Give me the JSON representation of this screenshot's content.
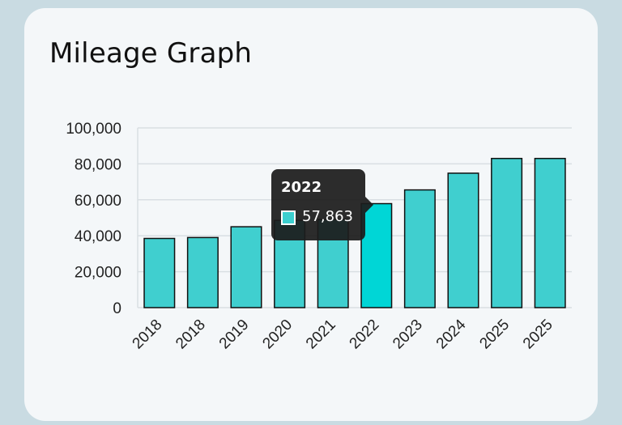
{
  "card": {
    "title": "Mileage Graph"
  },
  "colors": {
    "bar": "#40cfcf",
    "bar_active": "#00d6d6",
    "bar_border": "#111111",
    "grid": "#d9dfe3",
    "axis_text": "#222222",
    "tooltip_bg": "#1c1c1c"
  },
  "chart_data": {
    "type": "bar",
    "title": "Mileage Graph",
    "categories": [
      "2018",
      "2018",
      "2019",
      "2020",
      "2021",
      "2022",
      "2023",
      "2024",
      "2025",
      "2025"
    ],
    "values": [
      38500,
      39000,
      45000,
      48500,
      49000,
      57863,
      65500,
      74800,
      83000,
      83000
    ],
    "ylim": [
      0,
      100000
    ],
    "yticks": [
      "0",
      "20,000",
      "40,000",
      "60,000",
      "80,000",
      "100,000"
    ],
    "ytick_values": [
      0,
      20000,
      40000,
      60000,
      80000,
      100000
    ],
    "grid": true,
    "active_index": 5
  },
  "tooltip": {
    "title": "2022",
    "value": "57,863"
  }
}
